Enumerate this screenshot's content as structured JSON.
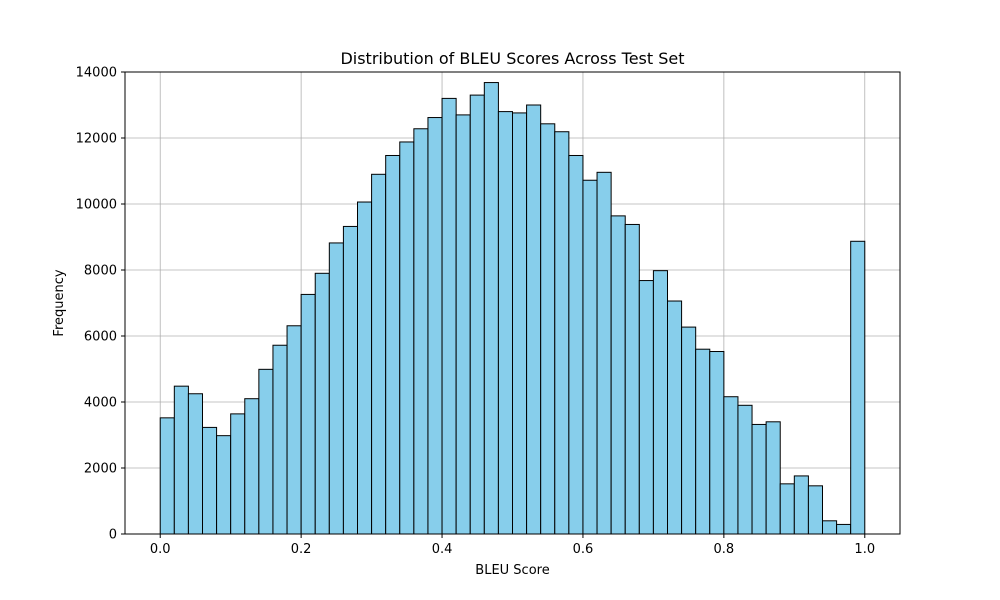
{
  "chart_data": {
    "type": "bar",
    "title": "Distribution of BLEU Scores Across Test Set",
    "xlabel": "BLEU Score",
    "ylabel": "Frequency",
    "bar_color": "#87CEEB",
    "edge_color": "#000000",
    "grid": true,
    "xlim": [
      -0.05,
      1.05
    ],
    "ylim": [
      0,
      14000
    ],
    "x_ticks": [
      0.0,
      0.2,
      0.4,
      0.6,
      0.8,
      1.0
    ],
    "x_tick_labels": [
      "0.0",
      "0.2",
      "0.4",
      "0.6",
      "0.8",
      "1.0"
    ],
    "y_ticks": [
      0,
      2000,
      4000,
      6000,
      8000,
      10000,
      12000,
      14000
    ],
    "y_tick_labels": [
      "0",
      "2000",
      "4000",
      "6000",
      "8000",
      "10000",
      "12000",
      "14000"
    ],
    "bins_start": 0.0,
    "bin_width": 0.02,
    "values": [
      3520,
      4480,
      4250,
      3230,
      2980,
      3640,
      4100,
      4990,
      5720,
      6310,
      7260,
      7900,
      8820,
      9320,
      10060,
      10900,
      11470,
      11880,
      12280,
      12620,
      13200,
      12700,
      13300,
      13680,
      12800,
      12760,
      13000,
      12430,
      12190,
      11470,
      10720,
      10960,
      9640,
      9380,
      7680,
      7980,
      7060,
      6270,
      5600,
      5530,
      4160,
      3900,
      3320,
      3400,
      1520,
      1760,
      1460,
      400,
      290,
      8870
    ]
  }
}
